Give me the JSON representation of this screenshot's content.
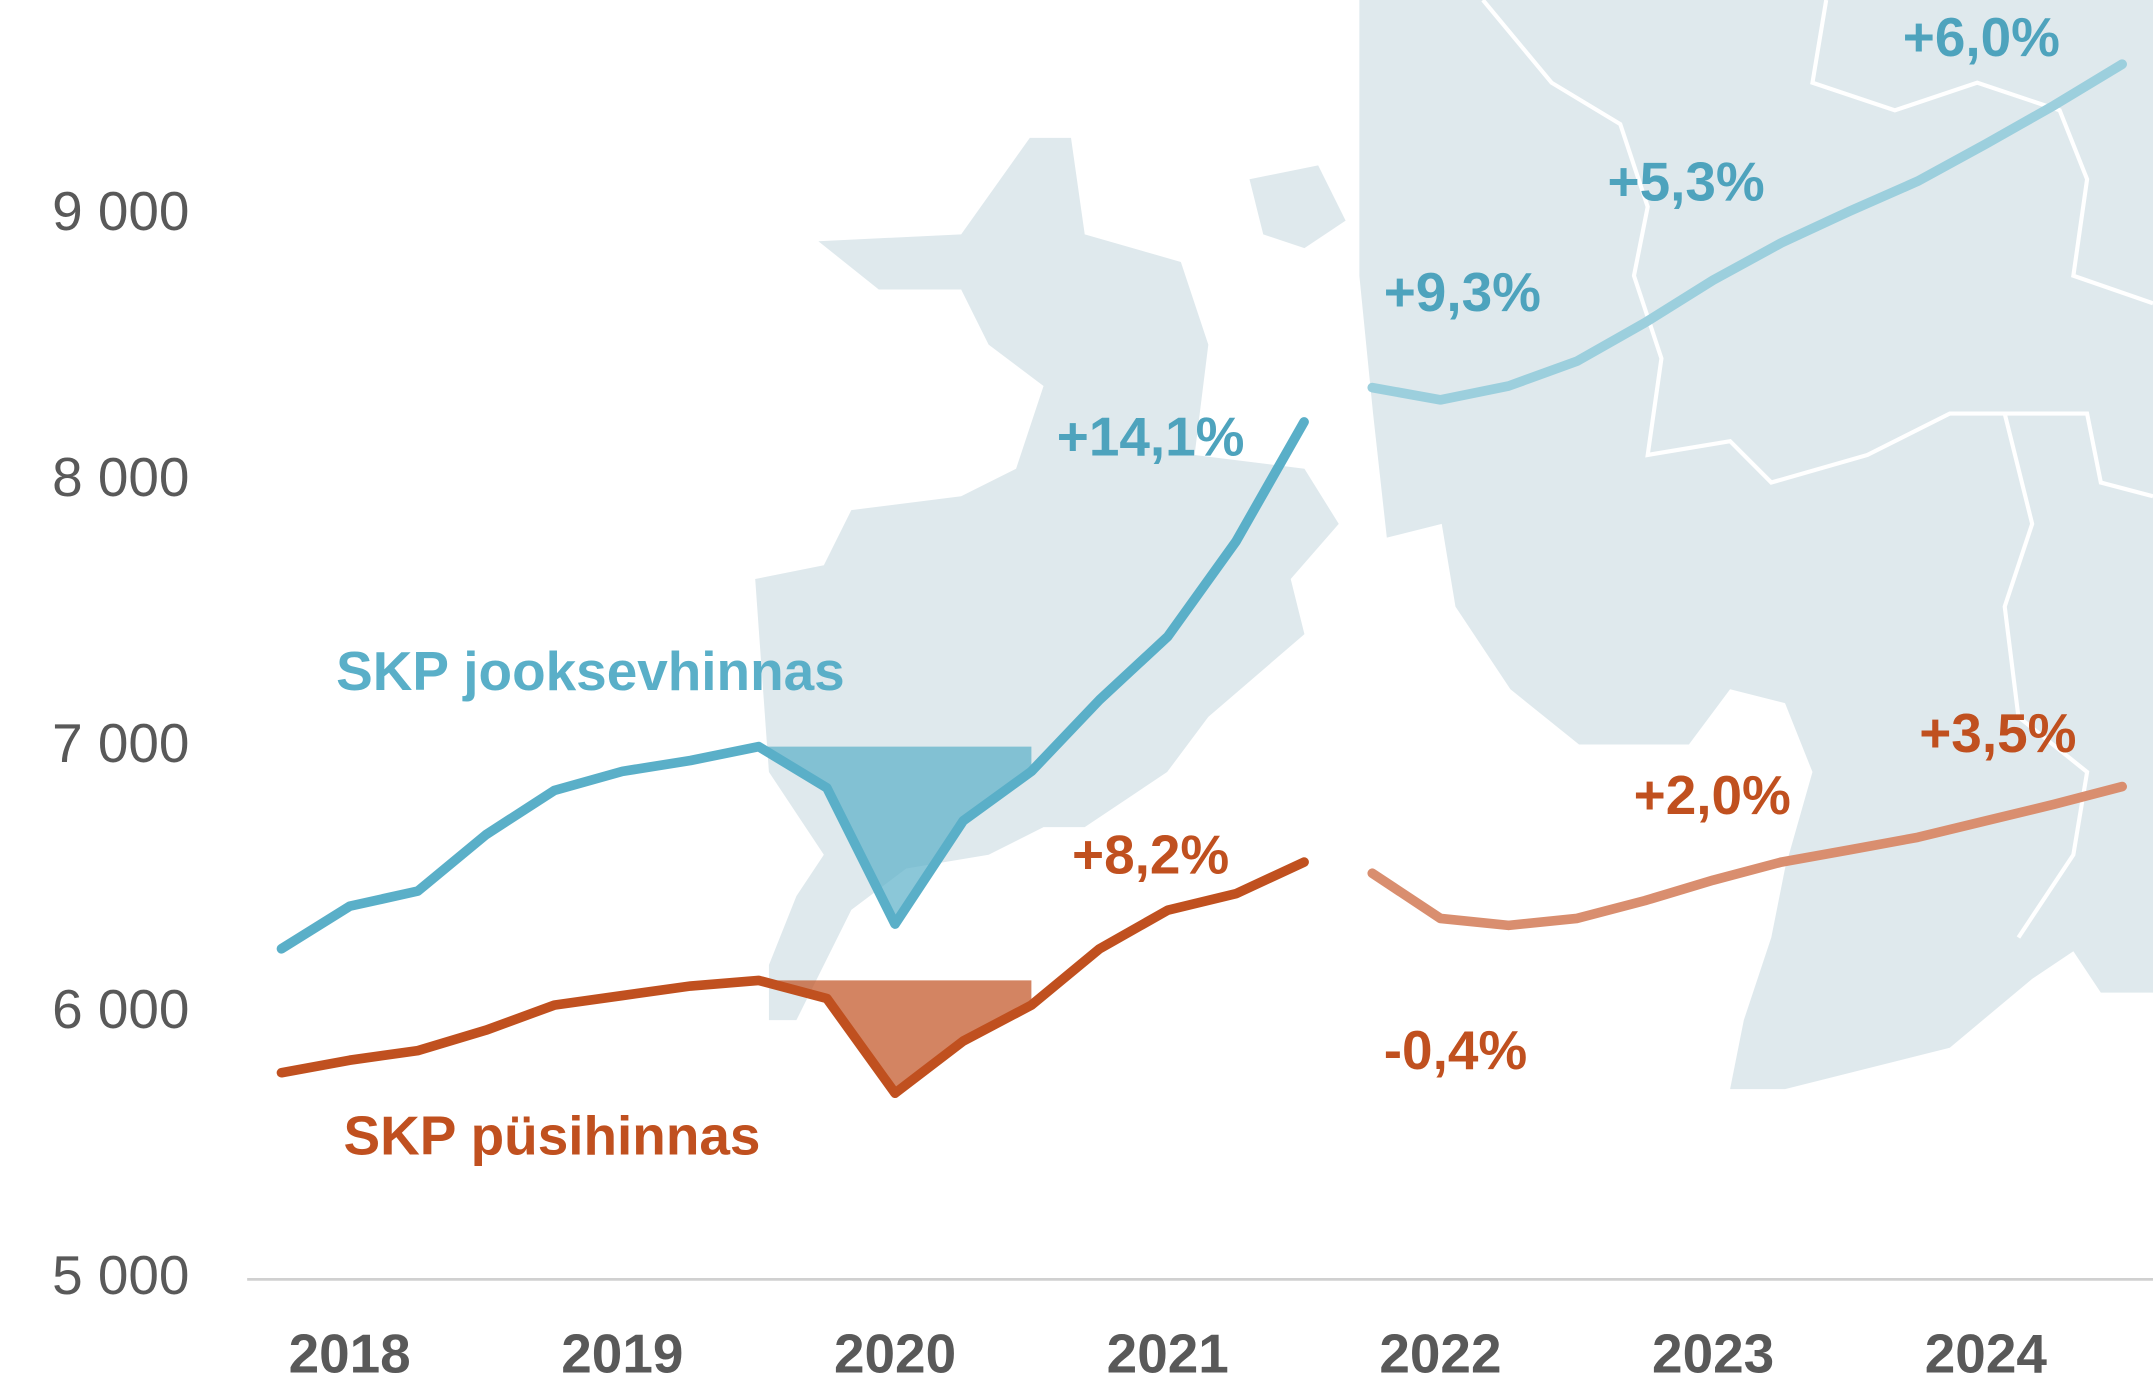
{
  "chart_data": {
    "type": "line",
    "categories": [
      null,
      "2018",
      null,
      null,
      null,
      "2019",
      null,
      null,
      null,
      "2020",
      null,
      null,
      null,
      "2021",
      null,
      null,
      null,
      "2022",
      null,
      null,
      null,
      "2023",
      null,
      null,
      null,
      "2024",
      null,
      null
    ],
    "series": [
      {
        "name": "SKP jooksevhinnas",
        "color": "#5aafc8",
        "forecast_color": "#9ccfdd",
        "values": [
          6243,
          6403,
          6460,
          6672,
          6838,
          6910,
          6951,
          7003,
          6848,
          6336,
          6724,
          6910,
          7179,
          7417,
          7774,
          8224,
          8353,
          8307,
          8359,
          8452,
          8597,
          8757,
          8897,
          9016,
          9129,
          9269,
          9414,
          9569
        ]
      },
      {
        "name": "SKP püsihinnas",
        "color": "#c0501f",
        "forecast_color": "#d98e6f",
        "values": [
          5777,
          5824,
          5860,
          5937,
          6031,
          6067,
          6103,
          6124,
          6056,
          5700,
          5896,
          6031,
          6243,
          6388,
          6450,
          6569,
          6527,
          6357,
          6331,
          6357,
          6424,
          6501,
          6569,
          6615,
          6662,
          6724,
          6786,
          6853
        ]
      }
    ],
    "ylim": [
      5000,
      9800
    ],
    "yticks": [
      {
        "value": 5000,
        "label": "5 000"
      },
      {
        "value": 6000,
        "label": "6 000"
      },
      {
        "value": 7000,
        "label": "7 000"
      },
      {
        "value": 8000,
        "label": "8 000"
      },
      {
        "value": 9000,
        "label": "9 000"
      }
    ],
    "annotations": [
      {
        "text": "+14,1%",
        "color": "#4ea3bd"
      },
      {
        "text": "+9,3%",
        "color": "#4ea3bd"
      },
      {
        "text": "+5,3%",
        "color": "#4ea3bd"
      },
      {
        "text": "+6,0%",
        "color": "#4ea3bd"
      },
      {
        "text": "+8,2%",
        "color": "#c0501f"
      },
      {
        "text": "-0,4%",
        "color": "#c0501f"
      },
      {
        "text": "+2,0%",
        "color": "#c0501f"
      },
      {
        "text": "+3,5%",
        "color": "#c0501f"
      }
    ]
  }
}
